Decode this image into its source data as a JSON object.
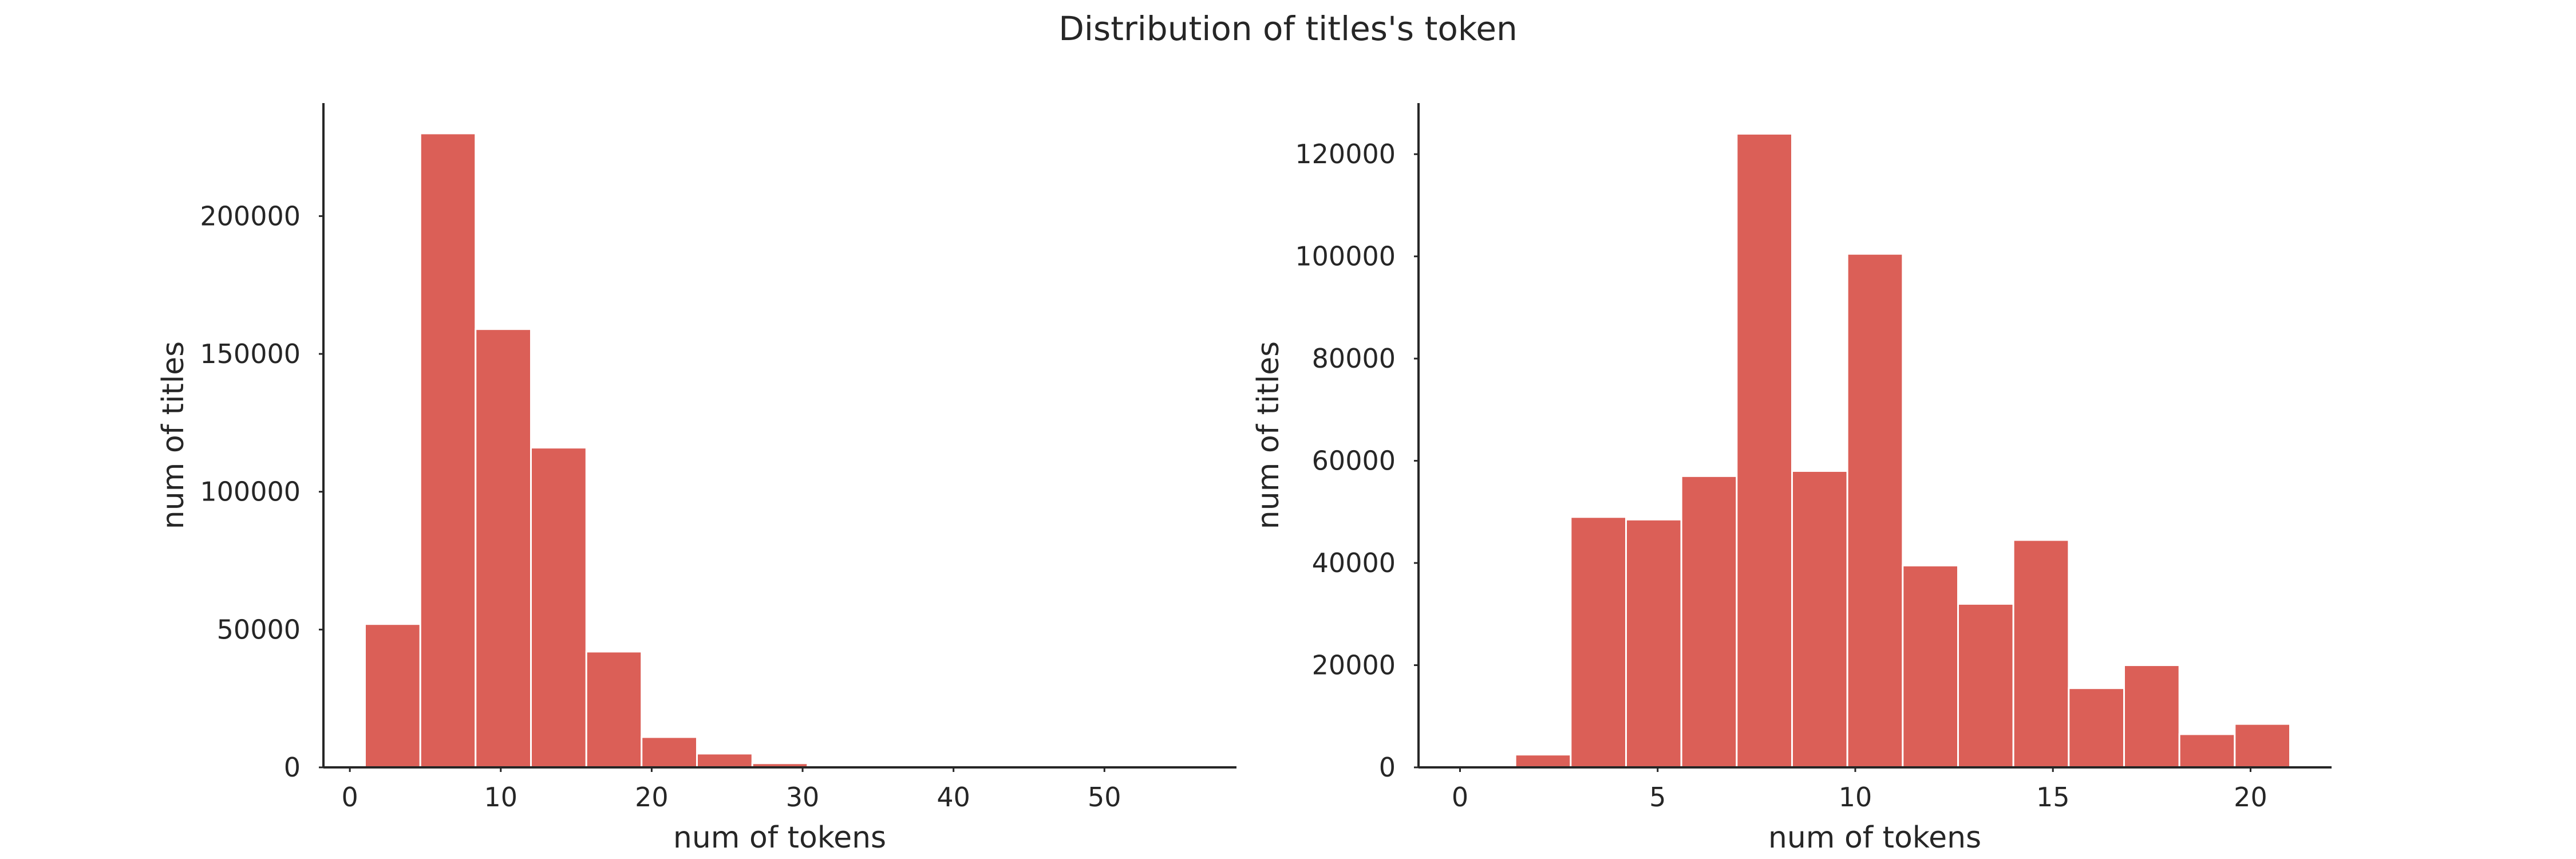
{
  "figure": {
    "title": "Distribution of titles's token",
    "bar_color": "#db5f57",
    "bar_edge_color": "#ffffff",
    "axis_color": "#262626"
  },
  "chart_data": [
    {
      "type": "bar",
      "title": "",
      "xlabel": "num of tokens",
      "ylabel": "num of titles",
      "bin_edges": [
        1,
        4.67,
        8.33,
        12,
        15.67,
        19.33,
        23,
        26.67,
        30.33,
        34,
        37.67,
        41.33,
        45,
        48.67,
        52.33,
        56
      ],
      "values": [
        52000,
        230000,
        159000,
        116000,
        42000,
        11000,
        5000,
        1500,
        300,
        100,
        50,
        20,
        10,
        5,
        2
      ],
      "xlim": [
        -1.75,
        58.75
      ],
      "ylim": [
        0,
        241000
      ],
      "xticks": [
        0,
        10,
        20,
        30,
        40,
        50
      ],
      "yticks": [
        0,
        50000,
        100000,
        150000,
        200000
      ],
      "grid": false,
      "legend": "none"
    },
    {
      "type": "bar",
      "title": "",
      "xlabel": "num of tokens",
      "ylabel": "num of titles",
      "bin_edges": [
        0,
        1.4,
        2.8,
        4.2,
        5.6,
        7.0,
        8.4,
        9.8,
        11.2,
        12.6,
        14.0,
        15.4,
        16.8,
        18.2,
        19.6,
        21.0
      ],
      "values": [
        0,
        2500,
        49000,
        48500,
        57000,
        124000,
        58000,
        100500,
        39500,
        32000,
        44500,
        15500,
        20000,
        6500,
        8500
      ],
      "xlim": [
        -1.05,
        22.05
      ],
      "ylim": [
        0,
        130000
      ],
      "xticks": [
        0,
        5,
        10,
        15,
        20
      ],
      "yticks": [
        0,
        20000,
        40000,
        60000,
        80000,
        100000,
        120000
      ],
      "grid": false,
      "legend": "none"
    }
  ]
}
